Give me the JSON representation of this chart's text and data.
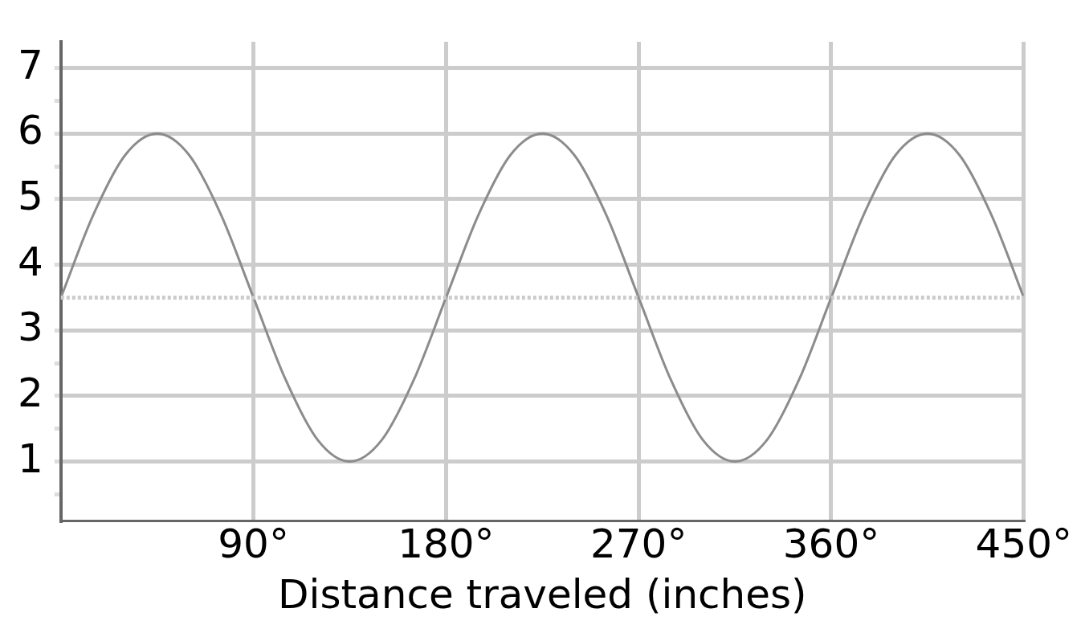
{
  "chart_data": {
    "type": "line",
    "xlabel": "Distance traveled (inches)",
    "x": [
      0,
      15,
      30,
      45,
      60,
      75,
      90,
      105,
      120,
      135,
      150,
      165,
      180,
      195,
      210,
      225,
      240,
      255,
      270,
      285,
      300,
      315,
      330,
      345,
      360,
      375,
      390,
      405,
      420,
      435,
      450
    ],
    "series": [
      {
        "color": "#8c8c8c",
        "values": [
          3.5,
          4.75,
          5.67,
          6,
          5.67,
          4.75,
          3.5,
          2.25,
          1.33,
          1,
          1.33,
          2.25,
          3.5,
          4.75,
          5.67,
          6,
          5.67,
          4.75,
          3.5,
          2.25,
          1.33,
          1,
          1.33,
          2.25,
          3.5,
          4.75,
          5.67,
          6,
          5.67,
          4.75,
          3.5
        ]
      }
    ],
    "xlim": [
      0,
      450
    ],
    "xticks": [
      {
        "value": 90,
        "label": "90°"
      },
      {
        "value": 180,
        "label": "180°"
      },
      {
        "value": 270,
        "label": "270°"
      },
      {
        "value": 360,
        "label": "360°"
      },
      {
        "value": 450,
        "label": "450°"
      }
    ],
    "ylim": [
      0.1,
      7.4
    ],
    "yticks": [
      {
        "value": 0.5,
        "label": null
      },
      1,
      {
        "value": 1.5,
        "label": null
      },
      2,
      {
        "value": 2.5,
        "label": null
      },
      3,
      4,
      5,
      {
        "value": 5.5,
        "label": null
      },
      6,
      {
        "value": 6.5,
        "label": null
      },
      7
    ],
    "ref_lines": [
      {
        "axis": "y",
        "value": 3.5,
        "color": "#cccccc",
        "line_style": "dotted"
      }
    ],
    "grid": true,
    "legend": false,
    "marker": "none",
    "line_style": "solid"
  }
}
